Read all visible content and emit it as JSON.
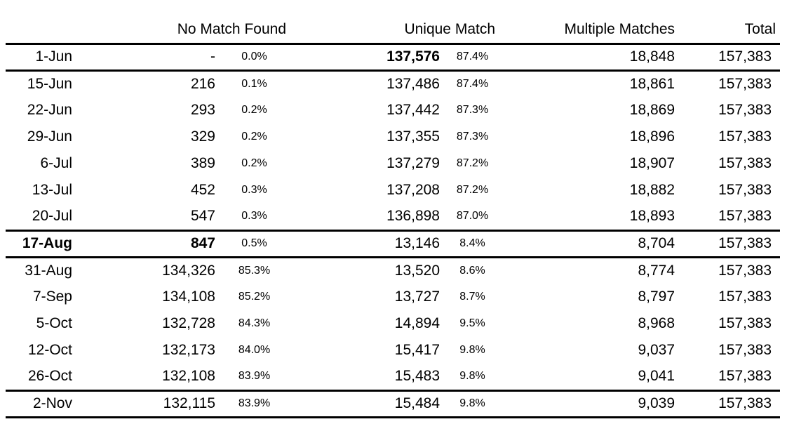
{
  "chart_data": {
    "type": "table",
    "headers": {
      "date": "",
      "no_match_found": "No Match Found",
      "unique_match": "Unique Match",
      "multiple_matches": "Multiple Matches",
      "total": "Total"
    },
    "sub_columns": [
      "count",
      "percent"
    ],
    "rows": [
      {
        "date": "1-Jun",
        "nm": "-",
        "nm_pct": "0.0%",
        "um": "137,576",
        "um_pct": "87.4%",
        "mm": "18,848",
        "total": "157,383",
        "emphasis": [
          "um"
        ],
        "rule_below": true
      },
      {
        "date": "15-Jun",
        "nm": "216",
        "nm_pct": "0.1%",
        "um": "137,486",
        "um_pct": "87.4%",
        "mm": "18,861",
        "total": "157,383"
      },
      {
        "date": "22-Jun",
        "nm": "293",
        "nm_pct": "0.2%",
        "um": "137,442",
        "um_pct": "87.3%",
        "mm": "18,869",
        "total": "157,383"
      },
      {
        "date": "29-Jun",
        "nm": "329",
        "nm_pct": "0.2%",
        "um": "137,355",
        "um_pct": "87.3%",
        "mm": "18,896",
        "total": "157,383"
      },
      {
        "date": "6-Jul",
        "nm": "389",
        "nm_pct": "0.2%",
        "um": "137,279",
        "um_pct": "87.2%",
        "mm": "18,907",
        "total": "157,383"
      },
      {
        "date": "13-Jul",
        "nm": "452",
        "nm_pct": "0.3%",
        "um": "137,208",
        "um_pct": "87.2%",
        "mm": "18,882",
        "total": "157,383"
      },
      {
        "date": "20-Jul",
        "nm": "547",
        "nm_pct": "0.3%",
        "um": "136,898",
        "um_pct": "87.0%",
        "mm": "18,893",
        "total": "157,383",
        "rule_below": true
      },
      {
        "date": "17-Aug",
        "nm": "847",
        "nm_pct": "0.5%",
        "um": "13,146",
        "um_pct": "8.4%",
        "mm": "8,704",
        "total": "157,383",
        "emphasis": [
          "date",
          "nm"
        ],
        "rule_below": true
      },
      {
        "date": "31-Aug",
        "nm": "134,326",
        "nm_pct": "85.3%",
        "um": "13,520",
        "um_pct": "8.6%",
        "mm": "8,774",
        "total": "157,383"
      },
      {
        "date": "7-Sep",
        "nm": "134,108",
        "nm_pct": "85.2%",
        "um": "13,727",
        "um_pct": "8.7%",
        "mm": "8,797",
        "total": "157,383"
      },
      {
        "date": "5-Oct",
        "nm": "132,728",
        "nm_pct": "84.3%",
        "um": "14,894",
        "um_pct": "9.5%",
        "mm": "8,968",
        "total": "157,383"
      },
      {
        "date": "12-Oct",
        "nm": "132,173",
        "nm_pct": "84.0%",
        "um": "15,417",
        "um_pct": "9.8%",
        "mm": "9,037",
        "total": "157,383"
      },
      {
        "date": "26-Oct",
        "nm": "132,108",
        "nm_pct": "83.9%",
        "um": "15,483",
        "um_pct": "9.8%",
        "mm": "9,041",
        "total": "157,383",
        "rule_below": true
      },
      {
        "date": "2-Nov",
        "nm": "132,115",
        "nm_pct": "83.9%",
        "um": "15,484",
        "um_pct": "9.8%",
        "mm": "9,039",
        "total": "157,383",
        "rule_below": true
      }
    ]
  }
}
